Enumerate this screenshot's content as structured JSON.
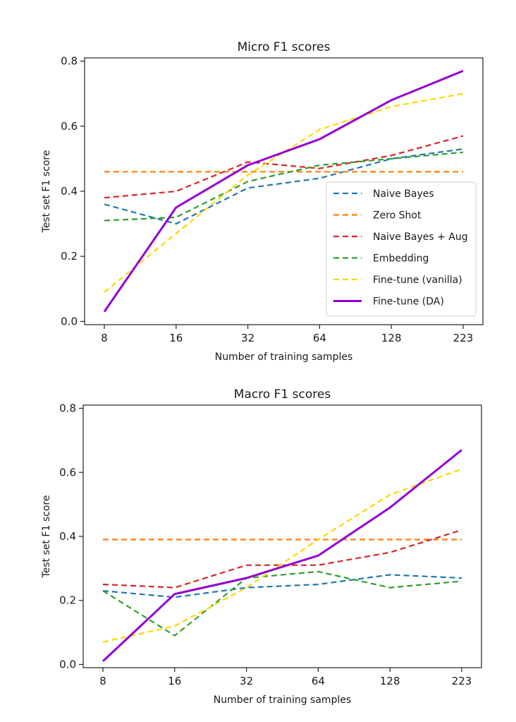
{
  "chart_data": [
    {
      "type": "line",
      "title": "Micro F1 scores",
      "xlabel": "Number of training samples",
      "ylabel": "Test set F1 score",
      "categories": [
        "8",
        "16",
        "32",
        "64",
        "128",
        "223"
      ],
      "yticks": [
        "0.0",
        "0.2",
        "0.4",
        "0.6",
        "0.8"
      ],
      "ylim": [
        -0.01,
        0.81
      ],
      "grid": false,
      "legend_position": "center-right",
      "series": [
        {
          "name": "Naive Bayes",
          "color": "#1f77b4",
          "style": "dashed",
          "values": [
            0.36,
            0.3,
            0.41,
            0.44,
            0.5,
            0.53
          ]
        },
        {
          "name": "Zero Shot",
          "color": "#ff7f0e",
          "style": "dashed",
          "values": [
            0.46,
            0.46,
            0.46,
            0.46,
            0.46,
            0.46
          ]
        },
        {
          "name": "Naive Bayes + Aug",
          "color": "#d62728",
          "style": "dashed",
          "values": [
            0.38,
            0.4,
            0.49,
            0.47,
            0.51,
            0.57
          ]
        },
        {
          "name": "Embedding",
          "color": "#2ca02c",
          "style": "dashed",
          "values": [
            0.31,
            0.32,
            0.43,
            0.48,
            0.5,
            0.52
          ]
        },
        {
          "name": "Fine-tune (vanilla)",
          "color": "#ffd700",
          "style": "dashed",
          "values": [
            0.09,
            0.27,
            0.45,
            0.59,
            0.66,
            0.7
          ]
        },
        {
          "name": "Fine-tune (DA)",
          "color": "#9400d3",
          "style": "solid",
          "values": [
            0.03,
            0.35,
            0.48,
            0.56,
            0.68,
            0.77
          ]
        }
      ]
    },
    {
      "type": "line",
      "title": "Macro F1 scores",
      "xlabel": "Number of training samples",
      "ylabel": "Test set F1 score",
      "categories": [
        "8",
        "16",
        "32",
        "64",
        "128",
        "223"
      ],
      "yticks": [
        "0.0",
        "0.2",
        "0.4",
        "0.6",
        "0.8"
      ],
      "ylim": [
        -0.01,
        0.81
      ],
      "grid": false,
      "series": [
        {
          "color": "#1f77b4",
          "style": "dashed",
          "values": [
            0.23,
            0.21,
            0.24,
            0.25,
            0.28,
            0.27
          ]
        },
        {
          "color": "#ff7f0e",
          "style": "dashed",
          "values": [
            0.39,
            0.39,
            0.39,
            0.39,
            0.39,
            0.39
          ]
        },
        {
          "color": "#d62728",
          "style": "dashed",
          "values": [
            0.25,
            0.24,
            0.31,
            0.31,
            0.35,
            0.42
          ]
        },
        {
          "color": "#2ca02c",
          "style": "dashed",
          "values": [
            0.23,
            0.09,
            0.27,
            0.29,
            0.24,
            0.26
          ]
        },
        {
          "color": "#ffd700",
          "style": "dashed",
          "values": [
            0.07,
            0.12,
            0.24,
            0.39,
            0.53,
            0.61
          ]
        },
        {
          "color": "#9400d3",
          "style": "solid",
          "values": [
            0.01,
            0.22,
            0.27,
            0.34,
            0.49,
            0.67
          ]
        }
      ]
    }
  ]
}
